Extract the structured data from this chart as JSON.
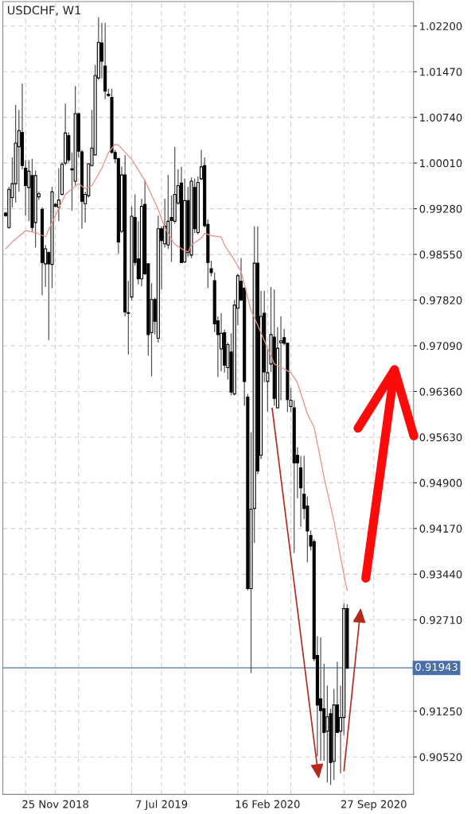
{
  "chart_data": {
    "type": "candlestick",
    "title": "USDCHF, W1",
    "color": "#000000",
    "x": [
      "2018-08-12",
      "2018-08-19",
      "2018-08-26",
      "2018-09-02",
      "2018-09-09",
      "2018-09-16",
      "2018-09-23",
      "2018-09-30",
      "2018-10-07",
      "2018-10-14",
      "2018-10-21",
      "2018-10-28",
      "2018-11-04",
      "2018-11-11",
      "2018-11-18",
      "2018-11-25",
      "2018-12-02",
      "2018-12-09",
      "2018-12-16",
      "2018-12-23",
      "2018-12-30",
      "2019-01-06",
      "2019-01-13",
      "2019-01-20",
      "2019-01-27",
      "2019-02-03",
      "2019-02-10",
      "2019-02-17",
      "2019-02-24",
      "2019-03-03",
      "2019-03-10",
      "2019-03-17",
      "2019-03-24",
      "2019-03-31",
      "2019-04-07",
      "2019-04-14",
      "2019-04-21",
      "2019-04-28",
      "2019-05-05",
      "2019-05-12",
      "2019-05-19",
      "2019-05-26",
      "2019-06-02",
      "2019-06-09",
      "2019-06-16",
      "2019-06-23",
      "2019-06-30",
      "2019-07-07",
      "2019-07-14",
      "2019-07-21",
      "2019-07-28",
      "2019-08-04",
      "2019-08-11",
      "2019-08-18",
      "2019-08-25",
      "2019-09-01",
      "2019-09-08",
      "2019-09-15",
      "2019-09-22",
      "2019-09-29",
      "2019-10-06",
      "2019-10-13",
      "2019-10-20",
      "2019-10-27",
      "2019-11-03",
      "2019-11-10",
      "2019-11-17",
      "2019-11-24",
      "2019-12-01",
      "2019-12-08",
      "2019-12-15",
      "2019-12-22",
      "2019-12-29",
      "2020-01-05",
      "2020-01-12",
      "2020-01-19",
      "2020-01-26",
      "2020-02-02",
      "2020-02-09",
      "2020-02-16",
      "2020-02-23",
      "2020-03-01",
      "2020-03-08",
      "2020-03-15",
      "2020-03-22",
      "2020-03-29",
      "2020-04-05",
      "2020-04-12",
      "2020-04-19",
      "2020-04-26",
      "2020-05-03",
      "2020-05-10",
      "2020-05-17",
      "2020-05-24",
      "2020-05-31",
      "2020-06-07",
      "2020-06-14",
      "2020-06-21",
      "2020-06-28",
      "2020-07-05",
      "2020-07-12",
      "2020-07-19",
      "2020-07-26",
      "2020-08-02"
    ],
    "ohlc": [
      [
        0.9921,
        0.9923,
        0.9915,
        0.9917
      ],
      [
        0.9898,
        0.9963,
        0.9896,
        0.9959
      ],
      [
        0.9946,
        1.001,
        0.993,
        0.9968
      ],
      [
        0.9968,
        1.0094,
        0.9938,
        1.0033
      ],
      [
        1.0027,
        1.0086,
        0.9955,
        1.0053
      ],
      [
        1.005,
        1.0128,
        0.9991,
        0.9997
      ],
      [
        0.9993,
        1.0006,
        0.9917,
        0.9965
      ],
      [
        0.9962,
        1.0006,
        0.9908,
        0.9988
      ],
      [
        0.9981,
        1.0008,
        0.9892,
        0.9898
      ],
      [
        0.9906,
        0.9989,
        0.9866,
        0.9981
      ],
      [
        0.9947,
        0.9955,
        0.9942,
        0.9952
      ],
      [
        0.9927,
        0.993,
        0.979,
        0.9842
      ],
      [
        0.984,
        0.987,
        0.9803,
        0.9864
      ],
      [
        0.9858,
        0.986,
        0.9718,
        0.984
      ],
      [
        0.9839,
        0.9963,
        0.9801,
        0.9955
      ],
      [
        0.9935,
        0.9937,
        0.993,
        0.9932
      ],
      [
        0.993,
        0.9993,
        0.9908,
        0.9942
      ],
      [
        0.9951,
        1.0002,
        0.9949,
        0.9999
      ],
      [
        1.0001,
        1.0096,
        0.9997,
        1.0049
      ],
      [
        1.0045,
        1.005,
        1.0002,
        1.0006
      ],
      [
        0.9992,
        1.0018,
        0.9925,
        0.999
      ],
      [
        0.9972,
        1.0124,
        0.9965,
        1.008
      ],
      [
        1.008,
        1.0082,
        1.001,
        1.002
      ],
      [
        1.0019,
        1.0022,
        0.9896,
        0.994
      ],
      [
        0.9936,
        0.9955,
        0.9906,
        0.9951
      ],
      [
        0.9949,
        1.0001,
        0.9946,
        1.0
      ],
      [
        0.9997,
        1.0086,
        0.9995,
        1.0025
      ],
      [
        1.0014,
        1.0158,
        1.0014,
        1.0141
      ],
      [
        1.0137,
        1.0234,
        1.0134,
        1.0194
      ],
      [
        1.0193,
        1.0225,
        1.0136,
        1.0164
      ],
      [
        1.0156,
        1.0225,
        1.0103,
        1.0116
      ],
      [
        1.0111,
        1.012,
        1.0107,
        1.0109
      ],
      [
        1.0106,
        1.012,
        1.0016,
        1.0018
      ],
      [
        1.0018,
        1.0022,
        1.0001,
        1.0008
      ],
      [
        1.0008,
        1.001,
        0.9856,
        0.9875
      ],
      [
        0.9892,
        0.9995,
        0.9889,
        0.9982
      ],
      [
        0.9982,
        1.0014,
        0.9756,
        0.9763
      ],
      [
        0.9762,
        0.9813,
        0.9695,
        0.9761
      ],
      [
        0.9787,
        0.9932,
        0.9782,
        0.9916
      ],
      [
        0.9914,
        0.9951,
        0.9837,
        0.9842
      ],
      [
        0.9848,
        0.9908,
        0.9807,
        0.9816
      ],
      [
        0.9816,
        0.9944,
        0.9804,
        0.9932
      ],
      [
        0.9935,
        0.9974,
        0.9822,
        0.9824
      ],
      [
        0.984,
        0.9841,
        0.9693,
        0.9727
      ],
      [
        0.973,
        0.9809,
        0.966,
        0.9783
      ],
      [
        0.9783,
        0.9786,
        0.9727,
        0.9748
      ],
      [
        0.9721,
        0.9917,
        0.9714,
        0.9896
      ],
      [
        0.9896,
        0.99,
        0.9799,
        0.9877
      ],
      [
        0.9872,
        0.9944,
        0.9866,
        0.99
      ],
      [
        0.987,
        0.9982,
        0.9864,
        0.9908
      ],
      [
        0.9914,
        0.9949,
        0.9843,
        0.9909
      ],
      [
        0.9908,
        1.0027,
        0.9904,
        0.9951
      ],
      [
        0.9937,
        0.9991,
        0.9934,
        0.9965
      ],
      [
        0.9969,
        0.9995,
        0.9841,
        0.9842
      ],
      [
        0.9843,
        0.9976,
        0.9841,
        0.9941
      ],
      [
        0.9941,
        0.9963,
        0.9851,
        0.9858
      ],
      [
        0.9854,
        0.9978,
        0.9849,
        0.9972
      ],
      [
        0.9962,
        0.9976,
        0.9889,
        0.9896
      ],
      [
        0.989,
        0.998,
        0.9887,
        0.997
      ],
      [
        0.9976,
        1.0022,
        0.9974,
        0.9995
      ],
      [
        0.9997,
        1.001,
        0.9898,
        0.9901
      ],
      [
        0.9903,
        0.9911,
        0.9801,
        0.9842
      ],
      [
        0.9832,
        0.9845,
        0.982,
        0.9826
      ],
      [
        0.9813,
        0.9826,
        0.9731,
        0.9744
      ],
      [
        0.9749,
        0.9756,
        0.9659,
        0.9727
      ],
      [
        0.9704,
        0.9761,
        0.9668,
        0.9729
      ],
      [
        0.973,
        0.9735,
        0.9666,
        0.9678
      ],
      [
        0.9674,
        0.9714,
        0.9655,
        0.9711
      ],
      [
        0.9699,
        0.9729,
        0.963,
        0.9635
      ],
      [
        0.9632,
        0.9782,
        0.963,
        0.9774
      ],
      [
        0.9769,
        0.9824,
        0.9742,
        0.9821
      ],
      [
        0.9812,
        0.9849,
        0.978,
        0.9782
      ],
      [
        0.9801,
        0.9803,
        0.9613,
        0.9652
      ],
      [
        0.9627,
        0.9632,
        0.9318,
        0.9321
      ],
      [
        0.9321,
        0.9571,
        0.9186,
        0.9448
      ],
      [
        0.9449,
        0.99,
        0.9394,
        0.9841
      ],
      [
        0.9841,
        0.99,
        0.9504,
        0.9509
      ],
      [
        0.9534,
        0.9797,
        0.9528,
        0.9756
      ],
      [
        0.9761,
        0.9797,
        0.9651,
        0.9667
      ],
      [
        0.9652,
        0.9704,
        0.9604,
        0.9666
      ],
      [
        0.968,
        0.9803,
        0.9667,
        0.9727
      ],
      [
        0.9723,
        0.9799,
        0.9613,
        0.9625
      ],
      [
        0.961,
        0.9739,
        0.9609,
        0.9705
      ],
      [
        0.9714,
        0.9756,
        0.9622,
        0.9717
      ],
      [
        0.9722,
        0.9736,
        0.971,
        0.9713
      ],
      [
        0.9713,
        0.9714,
        0.9603,
        0.9623
      ],
      [
        0.9612,
        0.9642,
        0.9603,
        0.9622
      ],
      [
        0.961,
        0.9622,
        0.9378,
        0.9522
      ],
      [
        0.9534,
        0.9547,
        0.9465,
        0.9522
      ],
      [
        0.9514,
        0.9533,
        0.942,
        0.9482
      ],
      [
        0.9472,
        0.9533,
        0.9432,
        0.9449
      ],
      [
        0.9453,
        0.9468,
        0.9363,
        0.9413
      ],
      [
        0.9406,
        0.9414,
        0.9382,
        0.9389
      ],
      [
        0.9396,
        0.94,
        0.9205,
        0.9209
      ],
      [
        0.9214,
        0.9245,
        0.9053,
        0.9135
      ],
      [
        0.9145,
        0.9243,
        0.9046,
        0.9126
      ],
      [
        0.9129,
        0.9201,
        0.9046,
        0.9091
      ],
      [
        0.9093,
        0.9166,
        0.9011,
        0.9116
      ],
      [
        0.9121,
        0.9129,
        0.9007,
        0.9043
      ],
      [
        0.9045,
        0.9161,
        0.9015,
        0.9135
      ],
      [
        0.9135,
        0.9204,
        0.909,
        0.9091
      ],
      [
        0.9093,
        0.9166,
        0.9026,
        0.9115
      ],
      [
        0.9115,
        0.9297,
        0.9087,
        0.9289
      ],
      [
        0.9289,
        0.9296,
        0.9192,
        0.9194
      ]
    ],
    "series": [
      {
        "type": "line",
        "color": "#f08c84",
        "x": [
          "2018-08-12",
          "2018-08-26",
          "2018-09-23",
          "2018-10-14",
          "2018-11-04",
          "2018-11-11",
          "2018-11-25",
          "2018-12-16",
          "2019-01-13",
          "2019-01-27",
          "2019-02-10",
          "2019-03-03",
          "2019-03-17",
          "2019-03-31",
          "2019-04-07",
          "2019-05-05",
          "2019-06-02",
          "2019-06-30",
          "2019-07-14",
          "2019-08-04",
          "2019-08-25",
          "2019-09-01",
          "2019-09-08",
          "2019-09-29",
          "2019-10-06",
          "2019-10-20",
          "2019-11-10",
          "2019-11-17",
          "2019-12-01",
          "2019-12-15",
          "2019-12-22",
          "2020-01-12",
          "2020-01-26",
          "2020-02-16",
          "2020-03-01",
          "2020-03-15",
          "2020-04-05",
          "2020-04-19",
          "2020-05-10",
          "2020-05-24",
          "2020-06-07",
          "2020-06-14",
          "2020-07-05",
          "2020-07-26",
          "2020-08-02"
        ],
        "values": [
          0.9864,
          0.9875,
          0.9893,
          0.989,
          0.9883,
          0.9895,
          0.9917,
          0.9951,
          0.9968,
          0.996,
          0.9965,
          0.9993,
          1.0018,
          1.0031,
          1.003,
          1.0007,
          0.9973,
          0.9927,
          0.9898,
          0.9871,
          0.9861,
          0.9859,
          0.987,
          0.9881,
          0.9889,
          0.9885,
          0.9883,
          0.987,
          0.9854,
          0.9837,
          0.9828,
          0.9765,
          0.9742,
          0.9705,
          0.968,
          0.9675,
          0.9666,
          0.965,
          0.96,
          0.9579,
          0.9527,
          0.9499,
          0.9429,
          0.9343,
          0.9318
        ]
      }
    ],
    "ref_lines": [
      {
        "axis": "y",
        "value": 0.91943,
        "label": "0.91943",
        "color": "#4a6fa8"
      }
    ],
    "xlim": [
      "2018-08-06",
      "2020-12-20"
    ],
    "xticks": [
      {
        "value": "2018-09-23",
        "label": null
      },
      {
        "value": "2018-11-25",
        "label": "25 Nov 2018"
      },
      {
        "value": "2019-01-13",
        "label": null
      },
      {
        "value": "2019-05-05",
        "label": null
      },
      {
        "value": "2019-07-07",
        "label": "7 Jul 2019"
      },
      {
        "value": "2019-08-25",
        "label": null
      },
      {
        "value": "2019-12-15",
        "label": null
      },
      {
        "value": "2020-02-16",
        "label": "16 Feb 2020"
      },
      {
        "value": "2020-04-05",
        "label": null
      },
      {
        "value": "2020-07-26",
        "label": null
      },
      {
        "value": "2020-09-27",
        "label": "27 Sep 2020"
      }
    ],
    "ylim": [
      0.8992,
      1.0259
    ],
    "yticks": [
      {
        "value": 0.9052,
        "label": "0.90520"
      },
      {
        "value": 0.9125,
        "label": "0.91250"
      },
      {
        "value": 0.9271,
        "label": "0.92710"
      },
      {
        "value": 0.9344,
        "label": "0.93440"
      },
      {
        "value": 0.9417,
        "label": "0.94170"
      },
      {
        "value": 0.949,
        "label": "0.94900"
      },
      {
        "value": 0.9563,
        "label": "0.95630"
      },
      {
        "value": 0.9636,
        "label": "0.96360"
      },
      {
        "value": 0.9709,
        "label": "0.97090"
      },
      {
        "value": 0.9782,
        "label": "0.97820"
      },
      {
        "value": 0.9855,
        "label": "0.98550"
      },
      {
        "value": 0.9928,
        "label": "0.99280"
      },
      {
        "value": 1.0001,
        "label": "1.00010"
      },
      {
        "value": 1.0074,
        "label": "1.00740"
      },
      {
        "value": 1.0147,
        "label": "1.01470"
      },
      {
        "value": 1.022,
        "label": "1.02200"
      }
    ],
    "grid": true
  }
}
